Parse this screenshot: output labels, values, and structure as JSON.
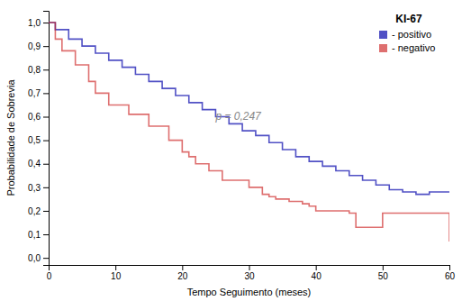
{
  "chart_data": {
    "type": "step",
    "xlabel": "Tempo Seguimento (meses)",
    "ylabel": "Probabilidade de Sobrevia",
    "xlim": [
      0,
      60
    ],
    "ylim": [
      -0.03,
      1.05
    ],
    "xticks": [
      0,
      10,
      20,
      30,
      40,
      50,
      60
    ],
    "yticks": [
      {
        "value": 0.0,
        "label": "0,0"
      },
      {
        "value": 0.1,
        "label": "0,1"
      },
      {
        "value": 0.2,
        "label": "0,2"
      },
      {
        "value": 0.3,
        "label": "0,3"
      },
      {
        "value": 0.4,
        "label": "0,4"
      },
      {
        "value": 0.5,
        "label": "0,5"
      },
      {
        "value": 0.6,
        "label": "0,6"
      },
      {
        "value": 0.7,
        "label": "0,7"
      },
      {
        "value": 0.8,
        "label": "0,8"
      },
      {
        "value": 0.9,
        "label": "0,9"
      },
      {
        "value": 1.0,
        "label": "1,0"
      }
    ],
    "legend": "top-right",
    "legend_title": "KI-67",
    "series": [
      {
        "name": "- positivo",
        "color": "#3333bb",
        "x": [
          0,
          1,
          3,
          5,
          7,
          9,
          11,
          13,
          15,
          17,
          19,
          21,
          23,
          25,
          27,
          29,
          31,
          33,
          35,
          37,
          39,
          41,
          43,
          45,
          47,
          49,
          51,
          53,
          55,
          57,
          59,
          60
        ],
        "values": [
          1.0,
          0.97,
          0.93,
          0.9,
          0.87,
          0.84,
          0.81,
          0.78,
          0.75,
          0.72,
          0.69,
          0.66,
          0.63,
          0.6,
          0.57,
          0.54,
          0.52,
          0.49,
          0.46,
          0.43,
          0.41,
          0.39,
          0.37,
          0.35,
          0.33,
          0.31,
          0.29,
          0.28,
          0.27,
          0.28,
          0.28,
          0.28
        ]
      },
      {
        "name": "- negativo",
        "color": "#cc2222",
        "x": [
          0,
          1,
          2,
          4,
          6,
          7,
          9,
          12,
          15,
          18,
          20,
          21,
          22,
          24,
          26,
          30,
          32,
          33,
          34,
          36,
          38,
          39,
          40,
          45,
          46,
          48,
          50,
          60
        ],
        "values": [
          1.0,
          0.93,
          0.88,
          0.82,
          0.75,
          0.7,
          0.65,
          0.61,
          0.56,
          0.5,
          0.45,
          0.43,
          0.4,
          0.37,
          0.33,
          0.3,
          0.27,
          0.26,
          0.25,
          0.24,
          0.23,
          0.22,
          0.2,
          0.19,
          0.13,
          0.13,
          0.19,
          0.07
        ]
      }
    ],
    "annotations": [
      {
        "text": "p = 0,247",
        "x": 25,
        "y": 0.6
      }
    ]
  }
}
